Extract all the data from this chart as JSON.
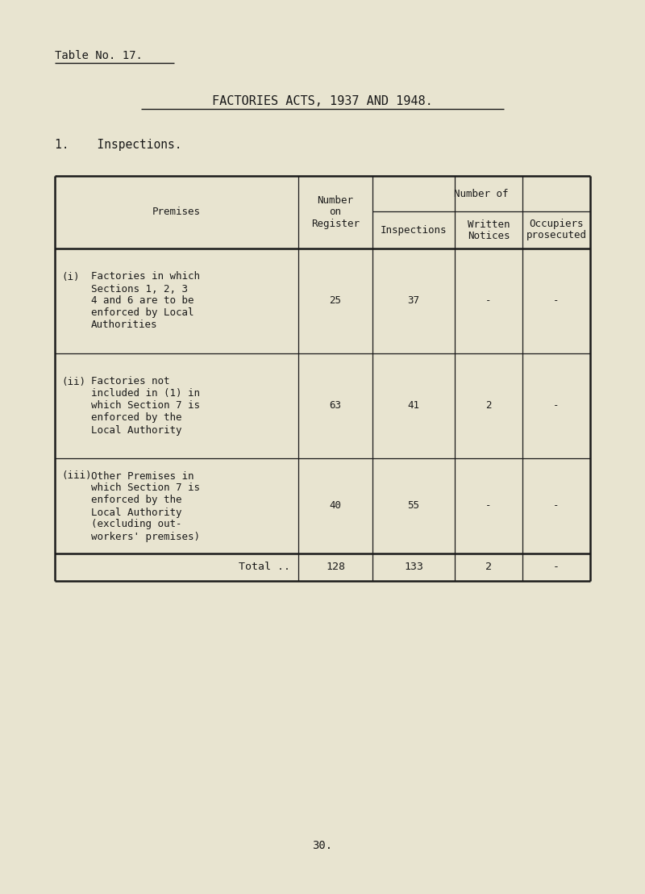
{
  "bg_color": "#e8e4d0",
  "text_color": "#1a1a1a",
  "table_no": "Table No. 17.",
  "title": "FACTORIES ACTS, 1937 AND 1948.",
  "section_heading": "1.    Inspections.",
  "row_label_header": "Premises",
  "col1_header": [
    "Number",
    "on",
    "Register"
  ],
  "col234_header": "Number of",
  "col2_header": "Inspections",
  "col3_header": [
    "Written",
    "Notices"
  ],
  "col4_header": [
    "Occupiers",
    "prosecuted"
  ],
  "rows": [
    {
      "prefix": "(i)",
      "lines": [
        "Factories in which",
        "Sections 1, 2, 3",
        "4 and 6 are to be",
        "enforced by Local",
        "Authorities"
      ],
      "values": [
        "25",
        "37",
        "-",
        "-"
      ]
    },
    {
      "prefix": "(ii)",
      "lines": [
        "Factories not",
        "included in (1) in",
        "which Section 7 is",
        "enforced by the",
        "Local Authority"
      ],
      "values": [
        "63",
        "41",
        "2",
        "-"
      ]
    },
    {
      "prefix": "(iii)",
      "lines": [
        "Other Premises in",
        "which Section 7 is",
        "enforced by the",
        "Local Authority",
        "(excluding out-",
        "workers' premises)"
      ],
      "values": [
        "40",
        "55",
        "-",
        "-"
      ]
    }
  ],
  "total_label": "Total ..",
  "total_values": [
    "128",
    "133",
    "2",
    "-"
  ],
  "page_number": "30.",
  "font_size_body": 9.0,
  "font_size_header": 9.0,
  "font_size_title": 11.0,
  "font_size_tableno": 10.0,
  "font_size_page": 10.0
}
